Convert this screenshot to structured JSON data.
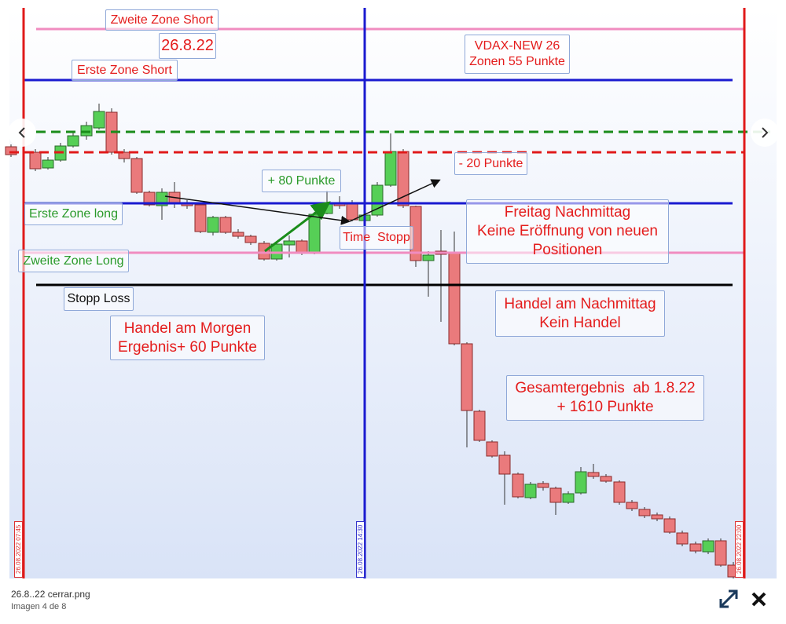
{
  "image": {
    "annotations": [
      {
        "lines": [
          "Zweite Zone Short"
        ]
      },
      {
        "lines": [
          "26.8.22"
        ]
      },
      {
        "lines": [
          "Erste Zone Short"
        ]
      },
      {
        "lines": [
          "VDAX-NEW 26",
          "Zonen 55 Punkte"
        ]
      },
      {
        "lines": [
          "+ 80 Punkte"
        ]
      },
      {
        "lines": [
          "- 20 Punkte"
        ]
      },
      {
        "lines": [
          "Erste Zone long"
        ]
      },
      {
        "lines": [
          "Freitag Nachmittag",
          "Keine Eröffnung von neuen",
          "Positionen"
        ]
      },
      {
        "lines": [
          "Time  Stopp"
        ]
      },
      {
        "lines": [
          "Zweite Zone Long"
        ]
      },
      {
        "lines": [
          "Stopp Loss"
        ]
      },
      {
        "lines": [
          "Handel am Nachmittag",
          "Kein Handel"
        ]
      },
      {
        "lines": [
          "Handel am Morgen",
          "Ergebnis+ 60 Punkte"
        ]
      },
      {
        "lines": [
          "Gesamtergebnis  ab 1.8.22",
          "+ 1610 Punkte"
        ]
      }
    ],
    "time_labels": [
      "26.08.2022 07:45",
      "26.08.2022 14:30",
      "26.08.2022 22:00"
    ]
  },
  "viewer": {
    "filename": "26.8..22 cerrar.png",
    "counter": "Imagen 4 de 8"
  }
}
